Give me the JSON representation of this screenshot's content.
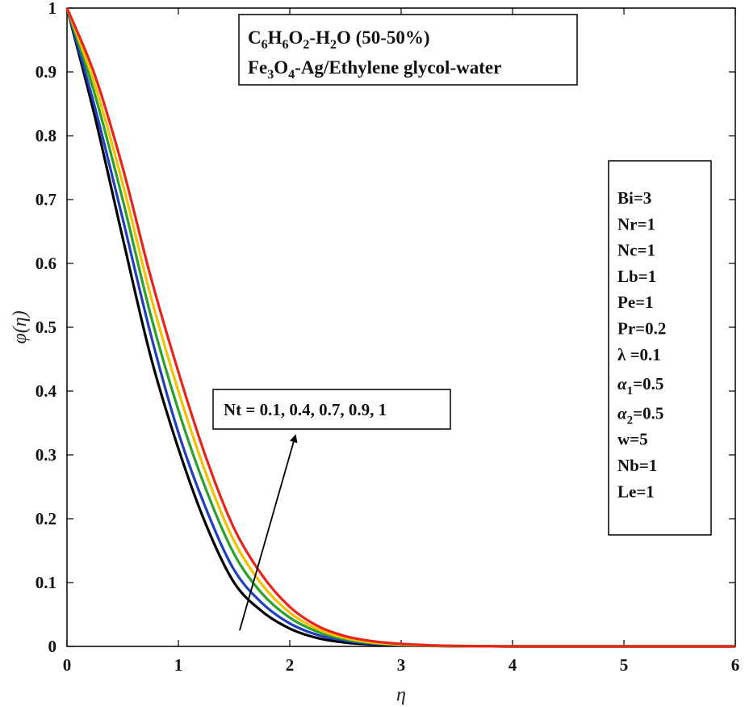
{
  "chart_data": {
    "type": "line",
    "xlabel": "η",
    "ylabel": "φ(η)",
    "xlim": [
      0,
      6
    ],
    "ylim": [
      0,
      1
    ],
    "xticks": [
      "0",
      "1",
      "2",
      "3",
      "4",
      "5",
      "6"
    ],
    "yticks": [
      "0",
      "0.1",
      "0.2",
      "0.3",
      "0.4",
      "0.5",
      "0.6",
      "0.7",
      "0.8",
      "0.9",
      "1"
    ],
    "grid": false,
    "x": [
      0,
      0.25,
      0.5,
      0.75,
      1,
      1.25,
      1.5,
      1.75,
      2,
      2.25,
      2.5,
      2.75,
      3,
      3.25,
      3.5,
      3.75,
      4,
      4.5,
      5,
      5.5,
      6
    ],
    "series": [
      {
        "color": "#000000",
        "values": [
          1,
          0.83,
          0.64,
          0.455,
          0.31,
          0.19,
          0.1,
          0.055,
          0.028,
          0.013,
          0.006,
          0.003,
          0.0015,
          0.0007,
          0.0003,
          0.0001,
          0,
          0,
          0,
          0,
          0
        ]
      },
      {
        "color": "#1f3fbf",
        "values": [
          1,
          0.845,
          0.67,
          0.49,
          0.335,
          0.215,
          0.12,
          0.068,
          0.036,
          0.018,
          0.009,
          0.004,
          0.002,
          0.001,
          0.0004,
          0.0002,
          0,
          0,
          0,
          0,
          0
        ]
      },
      {
        "color": "#2ca02c",
        "values": [
          1,
          0.865,
          0.7,
          0.52,
          0.37,
          0.245,
          0.145,
          0.083,
          0.045,
          0.023,
          0.011,
          0.005,
          0.0025,
          0.0012,
          0.0005,
          0.0002,
          0,
          0,
          0,
          0,
          0
        ]
      },
      {
        "color": "#f2c200",
        "values": [
          1,
          0.88,
          0.725,
          0.55,
          0.4,
          0.27,
          0.165,
          0.097,
          0.053,
          0.027,
          0.013,
          0.006,
          0.003,
          0.0014,
          0.0006,
          0.0003,
          0,
          0,
          0,
          0,
          0
        ]
      },
      {
        "color": "#e8231a",
        "values": [
          1,
          0.895,
          0.75,
          0.58,
          0.43,
          0.295,
          0.185,
          0.112,
          0.062,
          0.032,
          0.016,
          0.008,
          0.004,
          0.0018,
          0.0008,
          0.0003,
          0,
          0,
          0,
          0,
          0
        ]
      }
    ],
    "annotations": {
      "fluid_box": {
        "line1": {
          "a": "C",
          "a_sub": "6",
          "b": "H",
          "b_sub": "6",
          "c": "O",
          "c_sub": "2",
          "d": "-H",
          "d_sub": "2",
          "e": "O (50-50%)"
        },
        "line2": {
          "a": "Fe",
          "a_sub": "3",
          "b": "O",
          "b_sub": "4",
          "c": "-Ag/Ethylene glycol-water"
        }
      },
      "param_box": {
        "items": [
          "Bi=3",
          "Nr=1",
          "Nc=1",
          "Lb=1",
          "Pe=1",
          "Pr=0.2",
          "λ =0.1",
          "α",
          "α",
          "w=5",
          "Nb=1",
          "Le=1"
        ],
        "alpha1_sub": "1",
        "alpha1_rest": "=0.5",
        "alpha2_sub": "2",
        "alpha2_rest": "=0.5"
      },
      "nt_label": "Nt = 0.1, 0.4, 0.7, 0.9, 1",
      "arrow": {
        "from": [
          1.55,
          0.025
        ],
        "to": [
          2.05,
          0.33
        ]
      }
    }
  }
}
